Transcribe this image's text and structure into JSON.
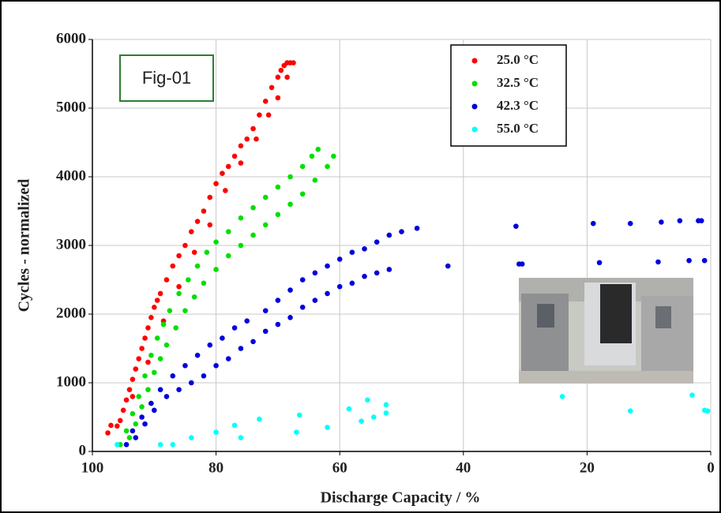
{
  "chart_data": {
    "type": "scatter",
    "xlabel": "Discharge Capacity / %",
    "ylabel": "Cycles - normalized",
    "annotation": "Fig-01",
    "xlim": [
      100,
      0
    ],
    "xticks": [
      100,
      80,
      60,
      40,
      20,
      0
    ],
    "ylim": [
      0,
      6000
    ],
    "yticks": [
      0,
      1000,
      2000,
      3000,
      4000,
      5000,
      6000
    ],
    "grid": true,
    "legend": "upper right",
    "series": [
      {
        "name": "25.0 °C",
        "color": "#ff0000",
        "x": [
          97.5,
          97,
          95.5,
          95,
          94.5,
          94,
          93.5,
          93,
          92.5,
          92,
          91.5,
          91,
          90.5,
          90,
          89.5,
          89,
          88,
          87,
          86,
          85,
          84,
          83,
          82,
          81,
          80,
          79,
          78,
          77,
          76,
          75,
          74,
          73,
          72,
          71,
          70,
          69.5,
          69,
          68.5,
          68,
          96,
          93.5,
          91,
          88.5,
          86,
          83.5,
          81,
          78.5,
          76,
          73.5,
          71.5,
          70,
          68.5,
          67.5
        ],
        "values": [
          270,
          380,
          450,
          600,
          750,
          900,
          1050,
          1200,
          1350,
          1500,
          1650,
          1800,
          1950,
          2100,
          2200,
          2300,
          2500,
          2700,
          2850,
          3000,
          3200,
          3350,
          3500,
          3700,
          3900,
          4050,
          4150,
          4300,
          4450,
          4550,
          4700,
          4900,
          5100,
          5300,
          5450,
          5550,
          5620,
          5660,
          5660,
          370,
          800,
          1300,
          1900,
          2400,
          2900,
          3300,
          3800,
          4200,
          4550,
          4900,
          5150,
          5450,
          5660
        ]
      },
      {
        "name": "32.5 °C",
        "color": "#00e000",
        "x": [
          95.5,
          94.5,
          93.5,
          92.5,
          91.5,
          90.5,
          89.5,
          88.5,
          87.5,
          86,
          84.5,
          83,
          81.5,
          80,
          78,
          76,
          74,
          72,
          70,
          68,
          66,
          64.5,
          63.5,
          94,
          93,
          92,
          91,
          90,
          89,
          88,
          86.5,
          85,
          83.5,
          82,
          80,
          78,
          76,
          74,
          72,
          70,
          68,
          66,
          64,
          62,
          61
        ],
        "values": [
          100,
          300,
          550,
          800,
          1100,
          1400,
          1650,
          1850,
          2050,
          2300,
          2500,
          2700,
          2900,
          3050,
          3200,
          3400,
          3550,
          3700,
          3850,
          4000,
          4150,
          4300,
          4400,
          200,
          400,
          650,
          900,
          1150,
          1350,
          1550,
          1800,
          2050,
          2250,
          2450,
          2650,
          2850,
          3000,
          3150,
          3300,
          3450,
          3600,
          3750,
          3950,
          4150,
          4300
        ]
      },
      {
        "name": "42.3 °C",
        "color": "#0000dd",
        "x": [
          94.5,
          93.5,
          92,
          90.5,
          89,
          87,
          85,
          83,
          81,
          79,
          77,
          75,
          72,
          70,
          68,
          66,
          64,
          62,
          60,
          58,
          56,
          54,
          52,
          50,
          47.5,
          93,
          91.5,
          90,
          88,
          86,
          84,
          82,
          80,
          78,
          76,
          74,
          72,
          70,
          68,
          66,
          64,
          62,
          60,
          58,
          56,
          54,
          52,
          42.5,
          31.5,
          31,
          30.5,
          19,
          18,
          13,
          8,
          8.5,
          5,
          3.5,
          2,
          1.5,
          1
        ],
        "values": [
          100,
          300,
          500,
          700,
          900,
          1100,
          1250,
          1400,
          1550,
          1650,
          1800,
          1900,
          2050,
          2200,
          2350,
          2500,
          2600,
          2700,
          2800,
          2900,
          2950,
          3050,
          3150,
          3200,
          3250,
          200,
          400,
          600,
          800,
          900,
          1000,
          1100,
          1250,
          1350,
          1500,
          1600,
          1750,
          1850,
          1950,
          2100,
          2200,
          2300,
          2400,
          2450,
          2550,
          2600,
          2650,
          2700,
          3280,
          2730,
          2730,
          3320,
          2750,
          3320,
          3340,
          2760,
          3360,
          2780,
          3360,
          3360,
          2780
        ]
      },
      {
        "name": "55.0 °C",
        "color": "#00ffff",
        "x": [
          96,
          89,
          87,
          84,
          80,
          77,
          76,
          73,
          67,
          66.5,
          62,
          58.5,
          56.5,
          55.5,
          54.5,
          52.5,
          52.5,
          24,
          13,
          3,
          1,
          0.5
        ],
        "values": [
          100,
          100,
          100,
          200,
          280,
          380,
          200,
          470,
          280,
          530,
          350,
          620,
          440,
          750,
          500,
          680,
          560,
          800,
          590,
          820,
          600,
          590
        ]
      }
    ]
  }
}
